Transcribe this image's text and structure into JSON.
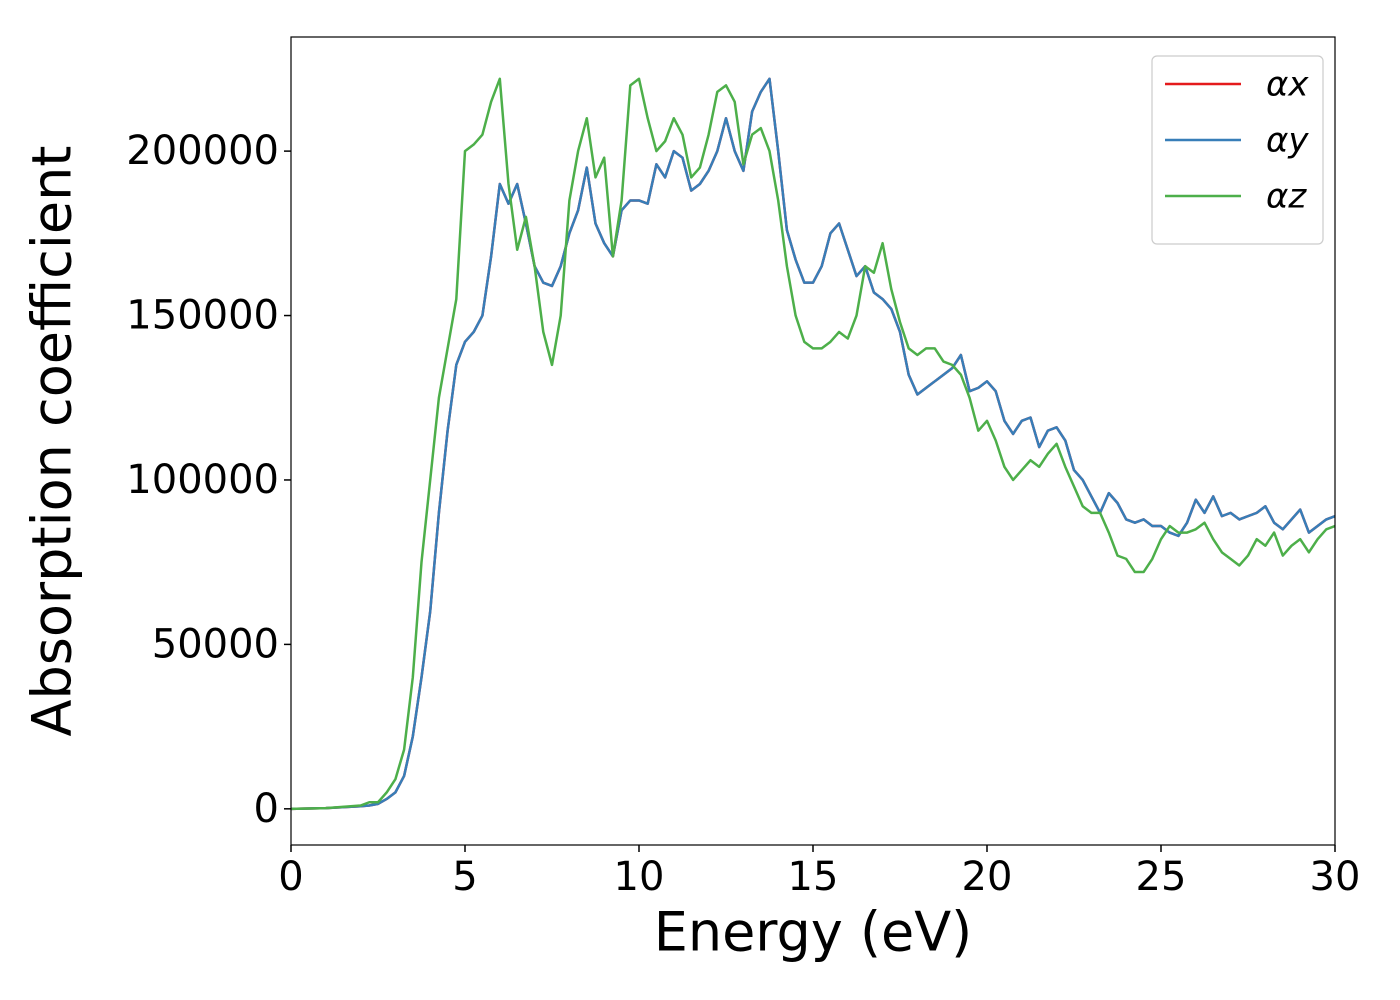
{
  "chart_data": {
    "type": "line",
    "xlabel": "Energy (eV)",
    "ylabel": "Absorption coefficient",
    "x": [
      0,
      1,
      2,
      2.25,
      2.5,
      2.75,
      3,
      3.25,
      3.5,
      3.75,
      4,
      4.25,
      4.5,
      4.75,
      5,
      5.25,
      5.5,
      5.75,
      6,
      6.25,
      6.5,
      6.75,
      7,
      7.25,
      7.5,
      7.75,
      8,
      8.25,
      8.5,
      8.75,
      9,
      9.25,
      9.5,
      9.75,
      10,
      10.25,
      10.5,
      10.75,
      11,
      11.25,
      11.5,
      11.75,
      12,
      12.25,
      12.5,
      12.75,
      13,
      13.25,
      13.5,
      13.75,
      14,
      14.25,
      14.5,
      14.75,
      15,
      15.25,
      15.5,
      15.75,
      16,
      16.25,
      16.5,
      16.75,
      17,
      17.25,
      17.5,
      17.75,
      18,
      18.25,
      18.5,
      18.75,
      19,
      19.25,
      19.5,
      19.75,
      20,
      20.25,
      20.5,
      20.75,
      21,
      21.25,
      21.5,
      21.75,
      22,
      22.25,
      22.5,
      22.75,
      23,
      23.25,
      23.5,
      23.75,
      24,
      24.25,
      24.5,
      24.75,
      25,
      25.25,
      25.5,
      25.75,
      26,
      26.25,
      26.5,
      26.75,
      27,
      27.25,
      27.5,
      27.75,
      28,
      28.25,
      28.5,
      28.75,
      29,
      29.25,
      29.5,
      29.75,
      30
    ],
    "series": [
      {
        "name": "αx",
        "color": "#e41a1c",
        "values": [
          0,
          200,
          800,
          1000,
          1500,
          3000,
          5000,
          10000,
          22000,
          40000,
          60000,
          90000,
          115000,
          135000,
          142000,
          145000,
          150000,
          168000,
          190000,
          184000,
          190000,
          178000,
          165000,
          160000,
          159000,
          165000,
          175000,
          182000,
          195000,
          178000,
          172000,
          168000,
          182000,
          185000,
          185000,
          184000,
          196000,
          192000,
          200000,
          198000,
          188000,
          190000,
          194000,
          200000,
          210000,
          200000,
          194000,
          212000,
          218000,
          222000,
          200000,
          176000,
          167000,
          160000,
          160000,
          165000,
          175000,
          178000,
          170000,
          162000,
          165000,
          157000,
          155000,
          152000,
          145000,
          132000,
          126000,
          128000,
          130000,
          132000,
          134000,
          138000,
          127000,
          128000,
          130000,
          127000,
          118000,
          114000,
          118000,
          119000,
          110000,
          115000,
          116000,
          112000,
          103000,
          100000,
          95000,
          90000,
          96000,
          93000,
          88000,
          87000,
          88000,
          86000,
          86000,
          84000,
          83000,
          87000,
          94000,
          90000,
          95000,
          89000,
          90000,
          88000,
          89000,
          90000,
          92000,
          87000,
          85000,
          88000,
          91000,
          84000,
          86000,
          88000,
          89000
        ]
      },
      {
        "name": "αy",
        "color": "#377eb8",
        "values": [
          0,
          200,
          800,
          1000,
          1500,
          3000,
          5000,
          10000,
          22000,
          40000,
          60000,
          90000,
          115000,
          135000,
          142000,
          145000,
          150000,
          168000,
          190000,
          184000,
          190000,
          178000,
          165000,
          160000,
          159000,
          165000,
          175000,
          182000,
          195000,
          178000,
          172000,
          168000,
          182000,
          185000,
          185000,
          184000,
          196000,
          192000,
          200000,
          198000,
          188000,
          190000,
          194000,
          200000,
          210000,
          200000,
          194000,
          212000,
          218000,
          222000,
          200000,
          176000,
          167000,
          160000,
          160000,
          165000,
          175000,
          178000,
          170000,
          162000,
          165000,
          157000,
          155000,
          152000,
          145000,
          132000,
          126000,
          128000,
          130000,
          132000,
          134000,
          138000,
          127000,
          128000,
          130000,
          127000,
          118000,
          114000,
          118000,
          119000,
          110000,
          115000,
          116000,
          112000,
          103000,
          100000,
          95000,
          90000,
          96000,
          93000,
          88000,
          87000,
          88000,
          86000,
          86000,
          84000,
          83000,
          87000,
          94000,
          90000,
          95000,
          89000,
          90000,
          88000,
          89000,
          90000,
          92000,
          87000,
          85000,
          88000,
          91000,
          84000,
          86000,
          88000,
          89000
        ]
      },
      {
        "name": "αz",
        "color": "#4daf4a",
        "values": [
          0,
          200,
          1000,
          2000,
          2000,
          5000,
          9000,
          18000,
          40000,
          75000,
          100000,
          125000,
          140000,
          155000,
          200000,
          202000,
          205000,
          215000,
          222000,
          190000,
          170000,
          180000,
          165000,
          145000,
          135000,
          150000,
          185000,
          200000,
          210000,
          192000,
          198000,
          168000,
          185000,
          220000,
          222000,
          210000,
          200000,
          203000,
          210000,
          205000,
          192000,
          195000,
          205000,
          218000,
          220000,
          215000,
          196000,
          205000,
          207000,
          200000,
          185000,
          165000,
          150000,
          142000,
          140000,
          140000,
          142000,
          145000,
          143000,
          150000,
          165000,
          163000,
          172000,
          158000,
          148000,
          140000,
          138000,
          140000,
          140000,
          136000,
          135000,
          132000,
          125000,
          115000,
          118000,
          112000,
          104000,
          100000,
          103000,
          106000,
          104000,
          108000,
          111000,
          104000,
          98000,
          92000,
          90000,
          90000,
          84000,
          77000,
          76000,
          72000,
          72000,
          76000,
          82000,
          86000,
          84000,
          84000,
          85000,
          87000,
          82000,
          78000,
          76000,
          74000,
          77000,
          82000,
          80000,
          84000,
          77000,
          80000,
          82000,
          78000,
          82000,
          85000,
          86000
        ]
      }
    ],
    "xlim": [
      0,
      30
    ],
    "xticks": [
      0,
      5,
      10,
      15,
      20,
      25,
      30
    ],
    "ylim": [
      -11000,
      234700
    ],
    "yticks": [
      0,
      50000,
      100000,
      150000,
      200000
    ],
    "legend": "upper right",
    "grid": false
  }
}
